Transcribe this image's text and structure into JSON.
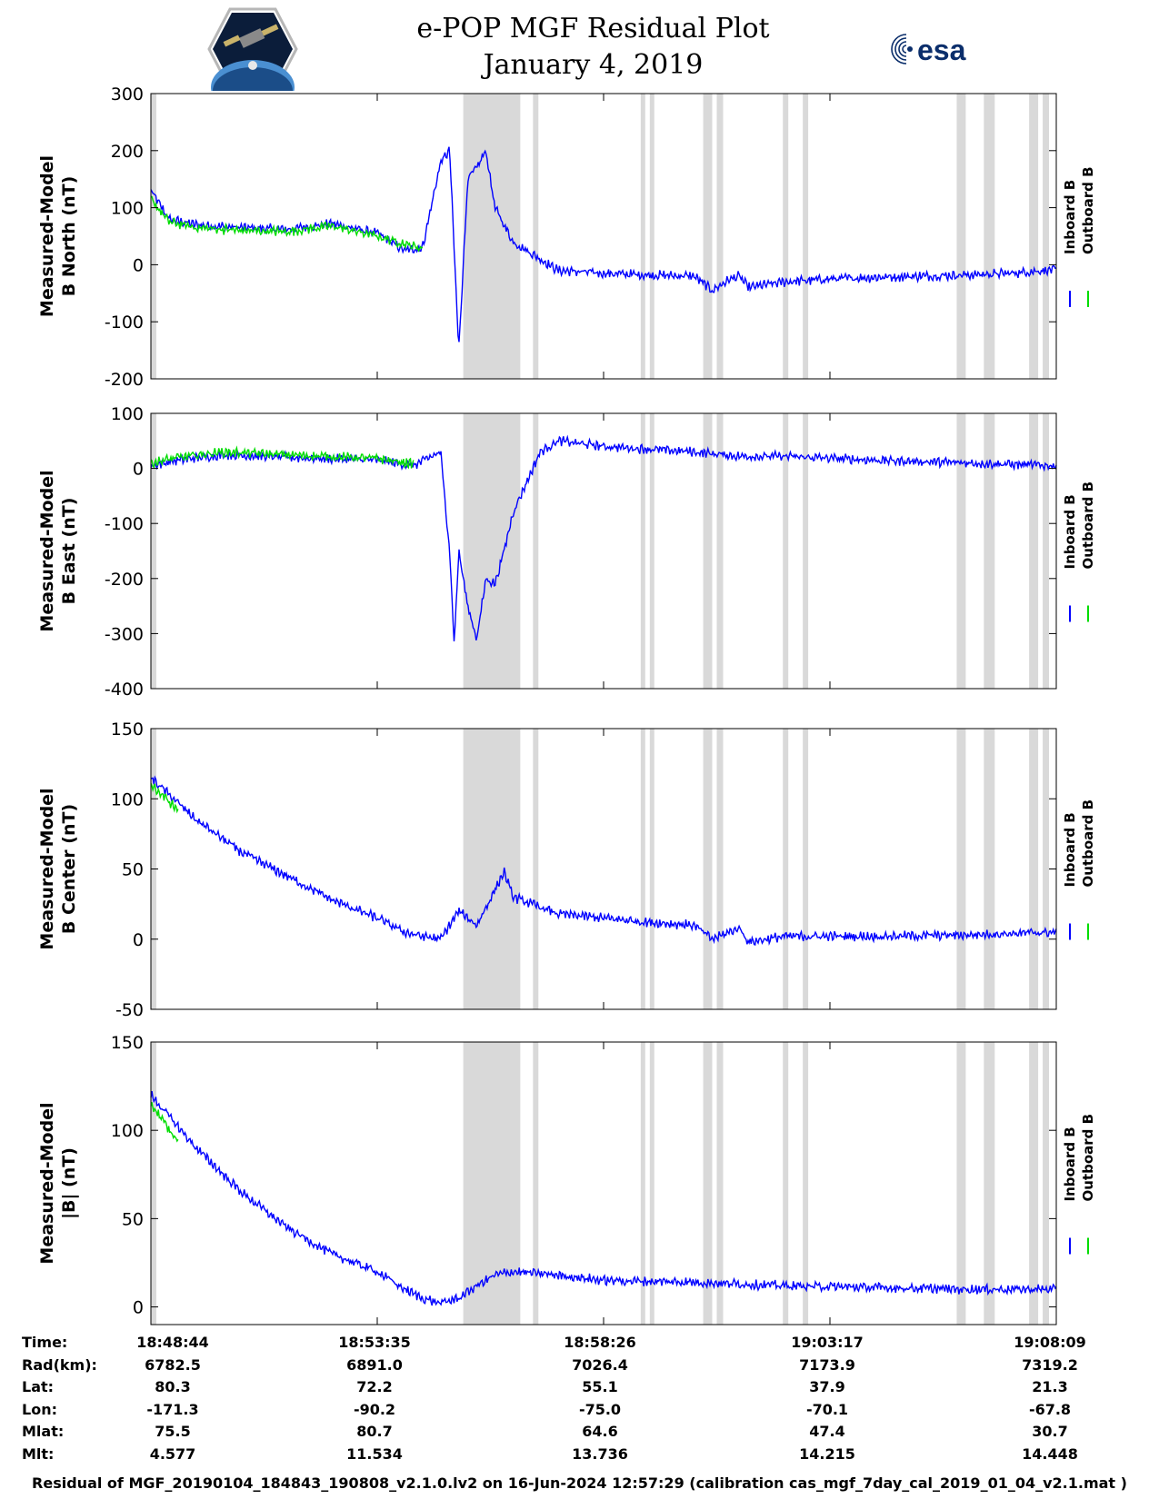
{
  "header": {
    "title_line1": "e-POP MGF Residual Plot",
    "title_line2": "January 4, 2019"
  },
  "logos": {
    "left": "cassiope-mission-patch",
    "right": "esa-logo",
    "esa_text": "esa"
  },
  "colors": {
    "inboard": "#0000ff",
    "outboard": "#00dd00",
    "shading": "#d9d9d9"
  },
  "chart_data": [
    {
      "type": "line",
      "ylabel": [
        "Measured-Model",
        "B North (nT)"
      ],
      "ylim": [
        -200,
        300
      ],
      "yticks": [
        -200,
        -100,
        0,
        100,
        200,
        300
      ],
      "legend": [
        "Inboard B",
        "Outboard B"
      ],
      "legend_placement": "right",
      "series": [
        {
          "name": "Inboard B",
          "color": "#0000ff",
          "x": [
            0,
            0.02,
            0.05,
            0.1,
            0.15,
            0.2,
            0.25,
            0.28,
            0.3,
            0.32,
            0.33,
            0.34,
            0.35,
            0.36,
            0.37,
            0.38,
            0.4,
            0.45,
            0.5,
            0.55,
            0.6,
            0.62,
            0.64,
            0.65,
            0.66,
            0.7,
            0.75,
            0.8,
            0.85,
            0.9,
            0.95,
            1.0
          ],
          "y": [
            130,
            80,
            70,
            65,
            62,
            72,
            55,
            25,
            30,
            180,
            200,
            -150,
            150,
            170,
            200,
            100,
            40,
            -10,
            -15,
            -18,
            -20,
            -45,
            -25,
            -20,
            -40,
            -30,
            -25,
            -22,
            -20,
            -18,
            -15,
            -8
          ]
        },
        {
          "name": "Outboard B",
          "color": "#00dd00",
          "x": [
            0,
            0.02,
            0.05,
            0.1,
            0.15,
            0.2,
            0.25,
            0.3
          ],
          "y": [
            115,
            75,
            65,
            60,
            58,
            68,
            50,
            28
          ]
        }
      ]
    },
    {
      "type": "line",
      "ylabel": [
        "Measured-Model",
        "B East (nT)"
      ],
      "ylim": [
        -400,
        100
      ],
      "yticks": [
        -400,
        -300,
        -200,
        -100,
        0,
        100
      ],
      "legend": [
        "Inboard B",
        "Outboard B"
      ],
      "legend_placement": "right",
      "series": [
        {
          "name": "Inboard B",
          "color": "#0000ff",
          "x": [
            0,
            0.03,
            0.08,
            0.15,
            0.25,
            0.29,
            0.32,
            0.33,
            0.335,
            0.34,
            0.35,
            0.36,
            0.37,
            0.38,
            0.39,
            0.4,
            0.43,
            0.45,
            0.5,
            0.55,
            0.6,
            0.65,
            0.7,
            0.8,
            0.9,
            1.0
          ],
          "y": [
            5,
            15,
            25,
            20,
            15,
            5,
            30,
            -150,
            -320,
            -150,
            -250,
            -310,
            -200,
            -210,
            -150,
            -80,
            30,
            50,
            40,
            35,
            30,
            22,
            22,
            15,
            10,
            5
          ]
        },
        {
          "name": "Outboard B",
          "color": "#00dd00",
          "x": [
            0,
            0.03,
            0.08,
            0.15,
            0.25,
            0.29
          ],
          "y": [
            10,
            20,
            30,
            25,
            18,
            8
          ]
        }
      ]
    },
    {
      "type": "line",
      "ylabel": [
        "Measured-Model",
        "B Center (nT)"
      ],
      "ylim": [
        -50,
        150
      ],
      "yticks": [
        -50,
        0,
        50,
        100,
        150
      ],
      "legend": [
        "Inboard B",
        "Outboard B"
      ],
      "legend_placement": "right",
      "series": [
        {
          "name": "Inboard B",
          "color": "#0000ff",
          "x": [
            0,
            0.05,
            0.1,
            0.15,
            0.2,
            0.25,
            0.28,
            0.3,
            0.32,
            0.34,
            0.36,
            0.38,
            0.39,
            0.4,
            0.45,
            0.5,
            0.55,
            0.6,
            0.62,
            0.65,
            0.66,
            0.7,
            0.8,
            0.9,
            1.0
          ],
          "y": [
            115,
            85,
            62,
            45,
            28,
            15,
            5,
            2,
            0,
            20,
            10,
            35,
            48,
            30,
            18,
            15,
            12,
            10,
            0,
            8,
            -2,
            2,
            2,
            3,
            5
          ]
        },
        {
          "name": "Outboard B",
          "color": "#00dd00",
          "x": [
            0,
            0.01,
            0.02,
            0.03
          ],
          "y": [
            110,
            104,
            98,
            92
          ]
        }
      ]
    },
    {
      "type": "line",
      "ylabel": [
        "Measured-Model",
        "|B| (nT)"
      ],
      "ylim": [
        -10,
        150
      ],
      "yticks": [
        0,
        50,
        100,
        150
      ],
      "legend": [
        "Inboard B",
        "Outboard B"
      ],
      "legend_placement": "right",
      "series": [
        {
          "name": "Inboard B",
          "color": "#0000ff",
          "x": [
            0,
            0.05,
            0.1,
            0.15,
            0.2,
            0.25,
            0.28,
            0.3,
            0.32,
            0.34,
            0.36,
            0.38,
            0.4,
            0.45,
            0.5,
            0.6,
            0.7,
            0.8,
            0.9,
            1.0
          ],
          "y": [
            120,
            90,
            65,
            45,
            30,
            20,
            10,
            5,
            2,
            5,
            12,
            18,
            20,
            18,
            15,
            14,
            12,
            11,
            10,
            10
          ]
        },
        {
          "name": "Outboard B",
          "color": "#00dd00",
          "x": [
            0,
            0.01,
            0.02,
            0.03
          ],
          "y": [
            115,
            108,
            100,
            94
          ]
        }
      ]
    }
  ],
  "shaded_intervals": [
    [
      0,
      0.006
    ],
    [
      0.345,
      0.408
    ],
    [
      0.422,
      0.428
    ],
    [
      0.541,
      0.546
    ],
    [
      0.551,
      0.556
    ],
    [
      0.61,
      0.62
    ],
    [
      0.625,
      0.632
    ],
    [
      0.698,
      0.704
    ],
    [
      0.72,
      0.726
    ],
    [
      0.89,
      0.9
    ],
    [
      0.92,
      0.932
    ],
    [
      0.97,
      0.98
    ],
    [
      0.985,
      0.992
    ]
  ],
  "time_ticks": [
    0.25,
    0.5,
    0.75
  ],
  "table": {
    "rows": [
      {
        "label": "Time:",
        "values": [
          "18:48:44",
          "18:53:35",
          "18:58:26",
          "19:03:17",
          "19:08:09"
        ]
      },
      {
        "label": "Rad(km):",
        "values": [
          "6782.5",
          "6891.0",
          "7026.4",
          "7173.9",
          "7319.2"
        ]
      },
      {
        "label": "Lat:",
        "values": [
          "80.3",
          "72.2",
          "55.1",
          "37.9",
          "21.3"
        ]
      },
      {
        "label": "Lon:",
        "values": [
          "-171.3",
          "-90.2",
          "-75.0",
          "-70.1",
          "-67.8"
        ]
      },
      {
        "label": "Mlat:",
        "values": [
          "75.5",
          "80.7",
          "64.6",
          "47.4",
          "30.7"
        ]
      },
      {
        "label": "Mlt:",
        "values": [
          "4.577",
          "11.534",
          "13.736",
          "14.215",
          "14.448"
        ]
      }
    ]
  },
  "footer": "Residual of MGF_20190104_184843_190808_v2.1.0.lv2 on 16-Jun-2024 12:57:29 (calibration cas_mgf_7day_cal_2019_01_04_v2.1.mat )"
}
